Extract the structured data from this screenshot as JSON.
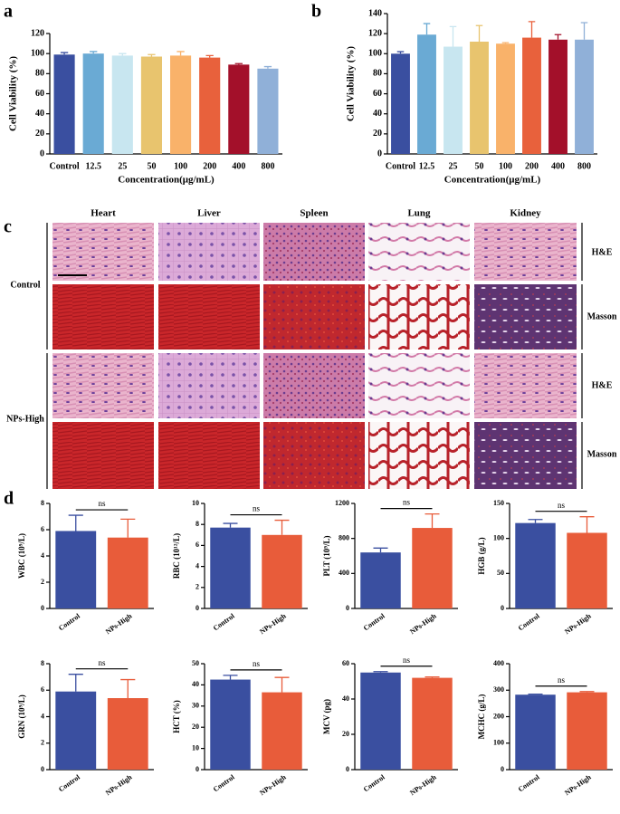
{
  "panel_labels": [
    "a",
    "b",
    "c",
    "d"
  ],
  "histology": {
    "organs": [
      "Heart",
      "Liver",
      "Spleen",
      "Lung",
      "Kidney"
    ],
    "groups": [
      "Control",
      "NPs-High"
    ],
    "stains": [
      "H&E",
      "Masson"
    ]
  },
  "chart_data": [
    {
      "type": "bar",
      "y_label": "Cell Viability (%)",
      "x_label": "Concentration(μg/mL)",
      "categories": [
        "Control",
        "12.5",
        "25",
        "50",
        "100",
        "200",
        "400",
        "800"
      ],
      "values": [
        99,
        100,
        98,
        97,
        98,
        96,
        89,
        85
      ],
      "errors": [
        2,
        2,
        2,
        2,
        4,
        2,
        1,
        2
      ],
      "colors": [
        "#3a4fa0",
        "#6aaad4",
        "#c8e6f0",
        "#e8c46e",
        "#f9b26a",
        "#e8613c",
        "#a3102a",
        "#90b0d8"
      ],
      "ylim": [
        0,
        120
      ],
      "yticks": [
        0,
        20,
        40,
        60,
        80,
        100,
        120
      ]
    },
    {
      "type": "bar",
      "y_label": "Cell Viability (%)",
      "x_label": "Concentration(μg/mL)",
      "categories": [
        "Control",
        "12.5",
        "25",
        "50",
        "100",
        "200",
        "400",
        "800"
      ],
      "values": [
        100,
        119,
        107,
        112,
        110,
        116,
        114,
        114
      ],
      "errors": [
        2,
        11,
        20,
        16,
        1,
        16,
        5,
        17
      ],
      "colors": [
        "#3a4fa0",
        "#6aaad4",
        "#c8e6f0",
        "#e8c46e",
        "#f9b26a",
        "#e8613c",
        "#a3102a",
        "#90b0d8"
      ],
      "ylim": [
        0,
        140
      ],
      "yticks": [
        0,
        20,
        40,
        60,
        80,
        100,
        120,
        140
      ]
    },
    {
      "type": "bar",
      "y_label": "WBC (10⁹/L)",
      "categories": [
        "Control",
        "NPs-High"
      ],
      "values": [
        5.9,
        5.4
      ],
      "errors": [
        1.2,
        1.4
      ],
      "colors": [
        "#3a4fa0",
        "#e85c3a"
      ],
      "ylim": [
        0,
        8
      ],
      "yticks": [
        0,
        2,
        4,
        6,
        8
      ],
      "annotation": "ns"
    },
    {
      "type": "bar",
      "y_label": "RBC (10¹²/L)",
      "categories": [
        "Control",
        "NPs-High"
      ],
      "values": [
        7.7,
        7.0
      ],
      "errors": [
        0.4,
        1.4
      ],
      "colors": [
        "#3a4fa0",
        "#e85c3a"
      ],
      "ylim": [
        0,
        10
      ],
      "yticks": [
        0,
        2,
        4,
        6,
        8,
        10
      ],
      "annotation": "ns"
    },
    {
      "type": "bar",
      "y_label": "PLT (10⁹/L)",
      "categories": [
        "Control",
        "NPs-High"
      ],
      "values": [
        640,
        920
      ],
      "errors": [
        50,
        160
      ],
      "colors": [
        "#3a4fa0",
        "#e85c3a"
      ],
      "ylim": [
        0,
        1200
      ],
      "yticks": [
        0,
        400,
        800,
        1200
      ],
      "annotation": "ns"
    },
    {
      "type": "bar",
      "y_label": "HGB (g/L)",
      "categories": [
        "Control",
        "NPs-High"
      ],
      "values": [
        122,
        108
      ],
      "errors": [
        5,
        23
      ],
      "colors": [
        "#3a4fa0",
        "#e85c3a"
      ],
      "ylim": [
        0,
        150
      ],
      "yticks": [
        0,
        50,
        100,
        150
      ],
      "annotation": "ns"
    },
    {
      "type": "bar",
      "y_label": "GRN (10⁹/L)",
      "categories": [
        "Control",
        "NPs-High"
      ],
      "values": [
        5.9,
        5.4
      ],
      "errors": [
        1.3,
        1.4
      ],
      "colors": [
        "#3a4fa0",
        "#e85c3a"
      ],
      "ylim": [
        0,
        8
      ],
      "yticks": [
        0,
        2,
        4,
        6,
        8
      ],
      "annotation": "ns"
    },
    {
      "type": "bar",
      "y_label": "HCT (%)",
      "categories": [
        "Control",
        "NPs-High"
      ],
      "values": [
        42.5,
        36.5
      ],
      "errors": [
        2,
        7
      ],
      "colors": [
        "#3a4fa0",
        "#e85c3a"
      ],
      "ylim": [
        0,
        50
      ],
      "yticks": [
        0,
        10,
        20,
        30,
        40,
        50
      ],
      "annotation": "ns"
    },
    {
      "type": "bar",
      "y_label": "MCV (pg)",
      "categories": [
        "Control",
        "NPs-High"
      ],
      "values": [
        55,
        52
      ],
      "errors": [
        0.5,
        0.5
      ],
      "colors": [
        "#3a4fa0",
        "#e85c3a"
      ],
      "ylim": [
        0,
        60
      ],
      "yticks": [
        0,
        20,
        40,
        60
      ],
      "annotation": "ns"
    },
    {
      "type": "bar",
      "y_label": "MCHC (g/L)",
      "categories": [
        "Control",
        "NPs-High"
      ],
      "values": [
        283,
        292
      ],
      "errors": [
        2,
        3
      ],
      "colors": [
        "#3a4fa0",
        "#e85c3a"
      ],
      "ylim": [
        0,
        400
      ],
      "yticks": [
        0,
        100,
        200,
        300,
        400
      ],
      "annotation": "ns"
    }
  ]
}
